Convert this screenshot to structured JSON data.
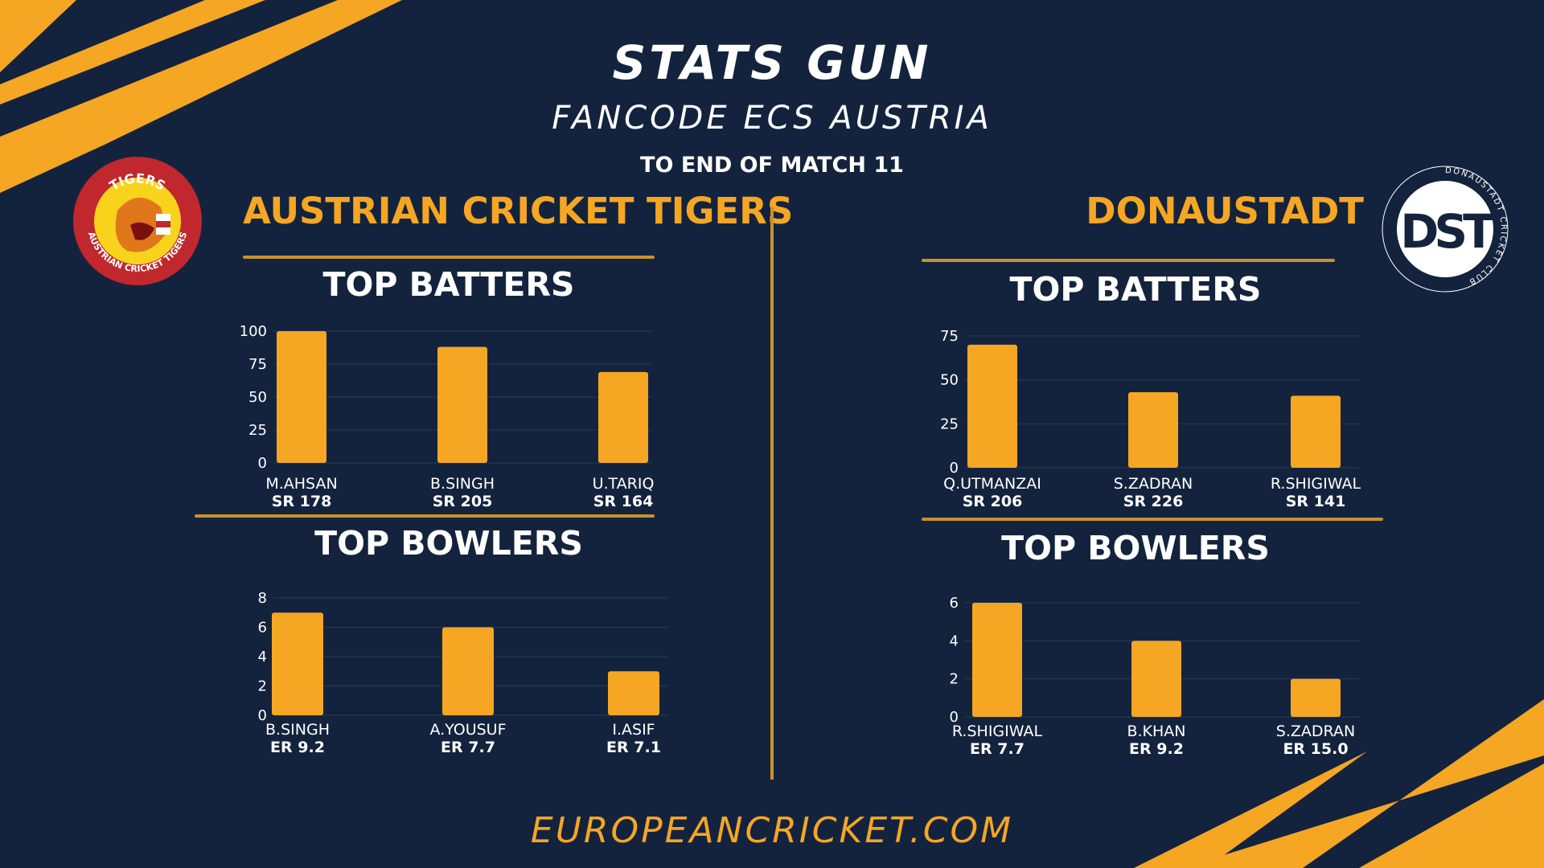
{
  "header": {
    "title": "STATS GUN",
    "subtitle": "FANCODE ECS AUSTRIA",
    "period": "TO END OF MATCH 11"
  },
  "teams": {
    "left": {
      "name": "AUSTRIAN CRICKET TIGERS",
      "logo": {
        "top_text": "TIGERS",
        "ring_text": "AUSTRIAN CRICKET TIGERS"
      }
    },
    "right": {
      "name": "DONAUSTADT",
      "logo": {
        "monogram": "DST",
        "ring_text": "DONAUSTADT CRICKET CLUB"
      }
    }
  },
  "sections": {
    "batters": "TOP BATTERS",
    "bowlers": "TOP BOWLERS"
  },
  "footer": "EUROPEANCRICKET.COM",
  "colors": {
    "background": "#14233d",
    "accent": "#f5a623",
    "text": "#ffffff",
    "rule": "#c9912b"
  },
  "chart_data": [
    {
      "id": "left-batters",
      "type": "bar",
      "categories": [
        "M.AHSAN",
        "B.SINGH",
        "U.TARIQ"
      ],
      "sublabels": [
        "SR 178",
        "SR 205",
        "SR 164"
      ],
      "values": [
        100,
        88,
        69
      ],
      "yticks": [
        0,
        25,
        50,
        75,
        100
      ],
      "ylim": [
        0,
        100
      ]
    },
    {
      "id": "left-bowlers",
      "type": "bar",
      "categories": [
        "B.SINGH",
        "A.YOUSUF",
        "I.ASIF"
      ],
      "sublabels": [
        "ER 9.2",
        "ER 7.7",
        "ER 7.1"
      ],
      "values": [
        7,
        6,
        3
      ],
      "yticks": [
        0,
        2,
        4,
        6,
        8
      ],
      "ylim": [
        0,
        8
      ]
    },
    {
      "id": "right-batters",
      "type": "bar",
      "categories": [
        "Q.UTMANZAI",
        "S.ZADRAN",
        "R.SHIGIWAL"
      ],
      "sublabels": [
        "SR 206",
        "SR 226",
        "SR 141"
      ],
      "values": [
        70,
        43,
        41
      ],
      "yticks": [
        0,
        25,
        50,
        75
      ],
      "ylim": [
        0,
        75
      ]
    },
    {
      "id": "right-bowlers",
      "type": "bar",
      "categories": [
        "R.SHIGIWAL",
        "B.KHAN",
        "S.ZADRAN"
      ],
      "sublabels": [
        "ER 7.7",
        "ER 9.2",
        "ER 15.0"
      ],
      "values": [
        6,
        4,
        2
      ],
      "yticks": [
        0,
        2,
        4,
        6
      ],
      "ylim": [
        0,
        6
      ]
    }
  ]
}
